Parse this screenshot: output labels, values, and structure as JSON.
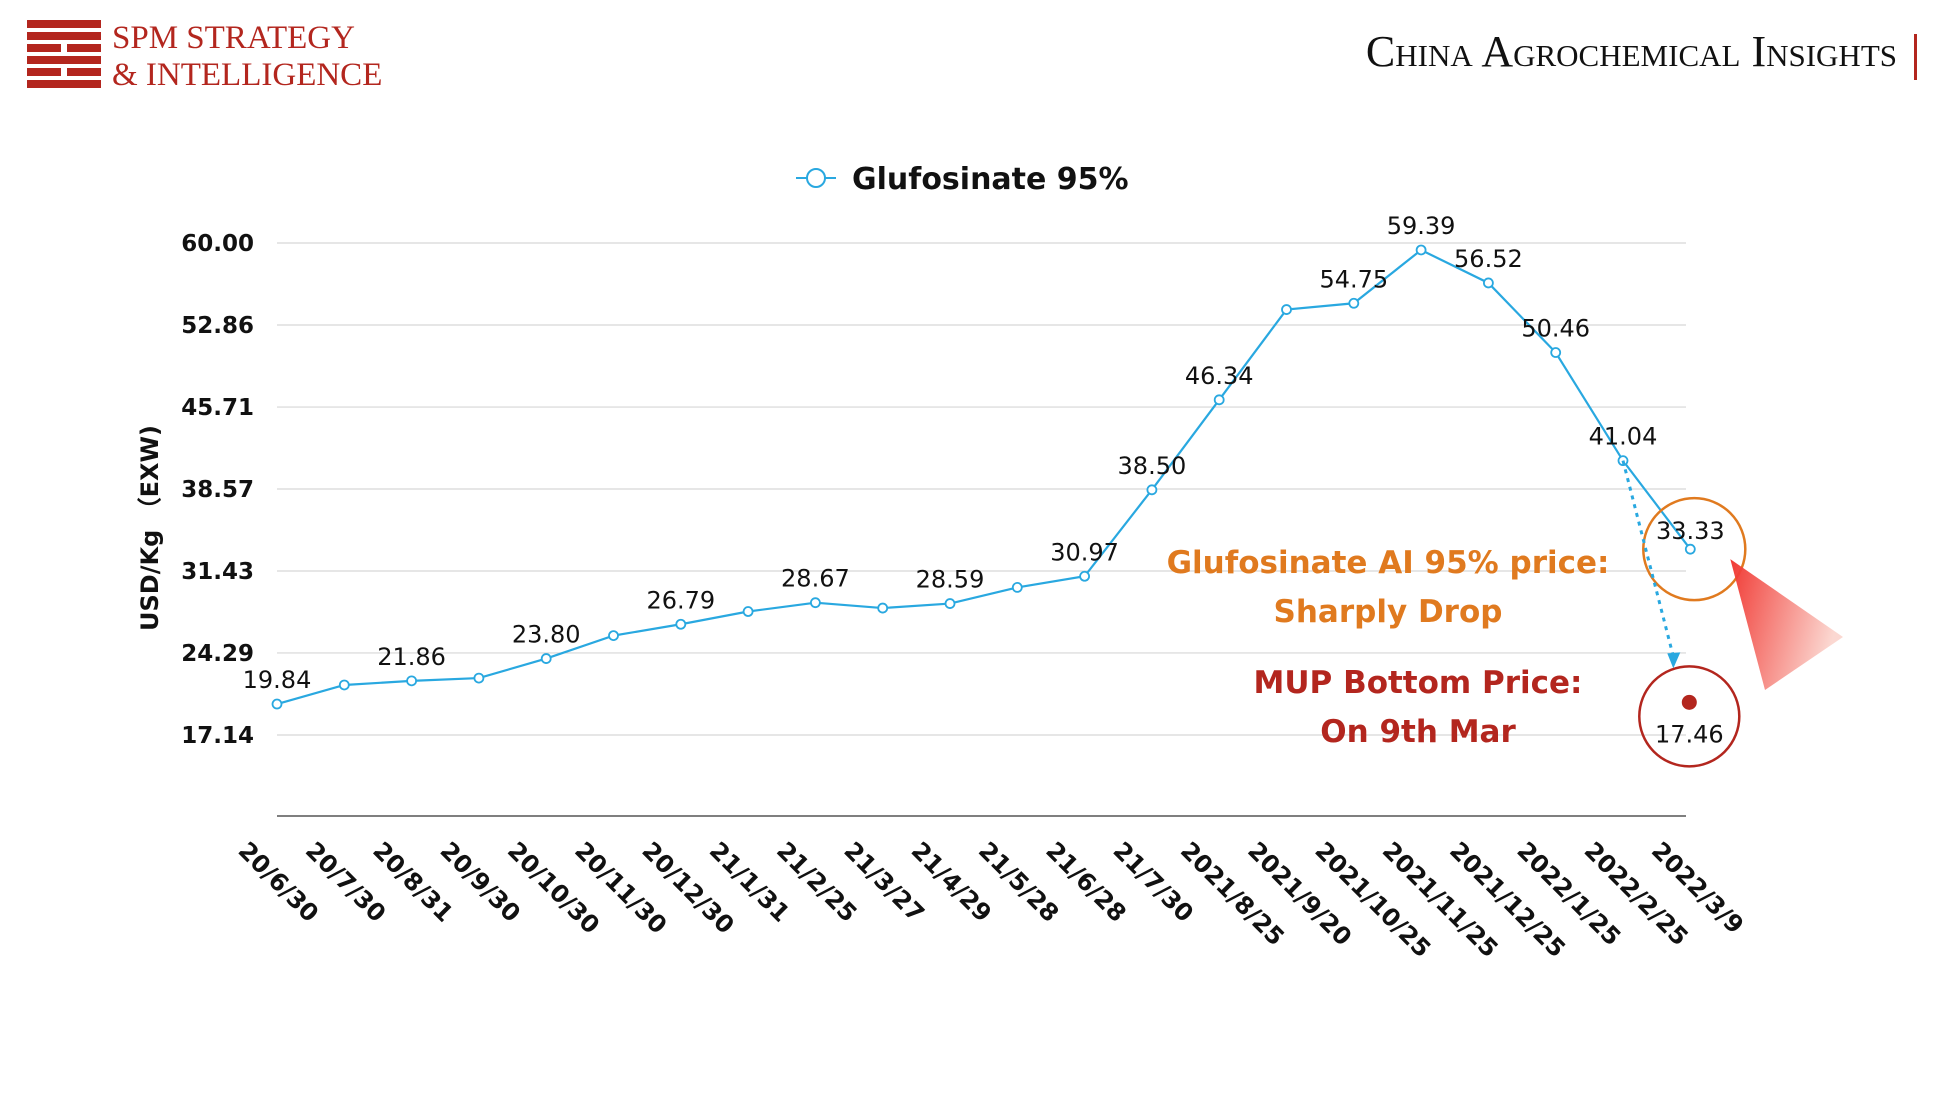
{
  "header": {
    "logo_line1": "SPM STRATEGY",
    "logo_line2": "& INTELLIGENCE",
    "title": "China Agrochemical Insights",
    "accent_color": "#b3261e"
  },
  "chart_data": {
    "type": "line",
    "title": "",
    "xlabel": "",
    "ylabel": "USD/Kg （EXW)",
    "ylim": [
      10,
      60
    ],
    "yticks": [
      "60.00",
      "52.86",
      "45.71",
      "38.57",
      "31.43",
      "24.29",
      "17.14"
    ],
    "grid": true,
    "legend": "top-center",
    "categories": [
      "20/6/30",
      "20/7/30",
      "20/8/31",
      "20/9/30",
      "20/10/30",
      "20/11/30",
      "20/12/30",
      "21/1/31",
      "21/2/25",
      "21/3/27",
      "21/4/29",
      "21/5/28",
      "21/6/28",
      "21/7/30",
      "2021/8/25",
      "2021/9/20",
      "2021/10/25",
      "2021/11/25",
      "2021/12/25",
      "2022/1/25",
      "2022/2/25",
      "2022/3/9"
    ],
    "series": [
      {
        "name": "Glufosinate 95%",
        "color": "#29a8e0",
        "values": [
          19.84,
          21.5,
          21.86,
          22.1,
          23.8,
          25.8,
          26.79,
          27.9,
          28.67,
          28.2,
          28.59,
          30.0,
          30.97,
          38.5,
          46.34,
          54.2,
          54.75,
          59.39,
          56.52,
          50.46,
          41.04,
          33.33
        ],
        "labels": [
          "19.84",
          "",
          "21.86",
          "",
          "23.80",
          "",
          "26.79",
          "",
          "28.67",
          "",
          "28.59",
          "",
          "30.97",
          "38.50",
          "46.34",
          "",
          "54.75",
          "59.39",
          "56.52",
          "50.46",
          "41.04",
          "33.33"
        ]
      }
    ],
    "annotations": {
      "drop_text_line1": "Glufosinate AI 95% price:",
      "drop_text_line2": "Sharply Drop",
      "drop_color": "#e07a1f",
      "mup_text_line1": "MUP Bottom Price:",
      "mup_text_line2": "On 9th Mar",
      "mup_color": "#b3261e",
      "mup_value": 17.46,
      "mup_label": "17.46"
    }
  }
}
